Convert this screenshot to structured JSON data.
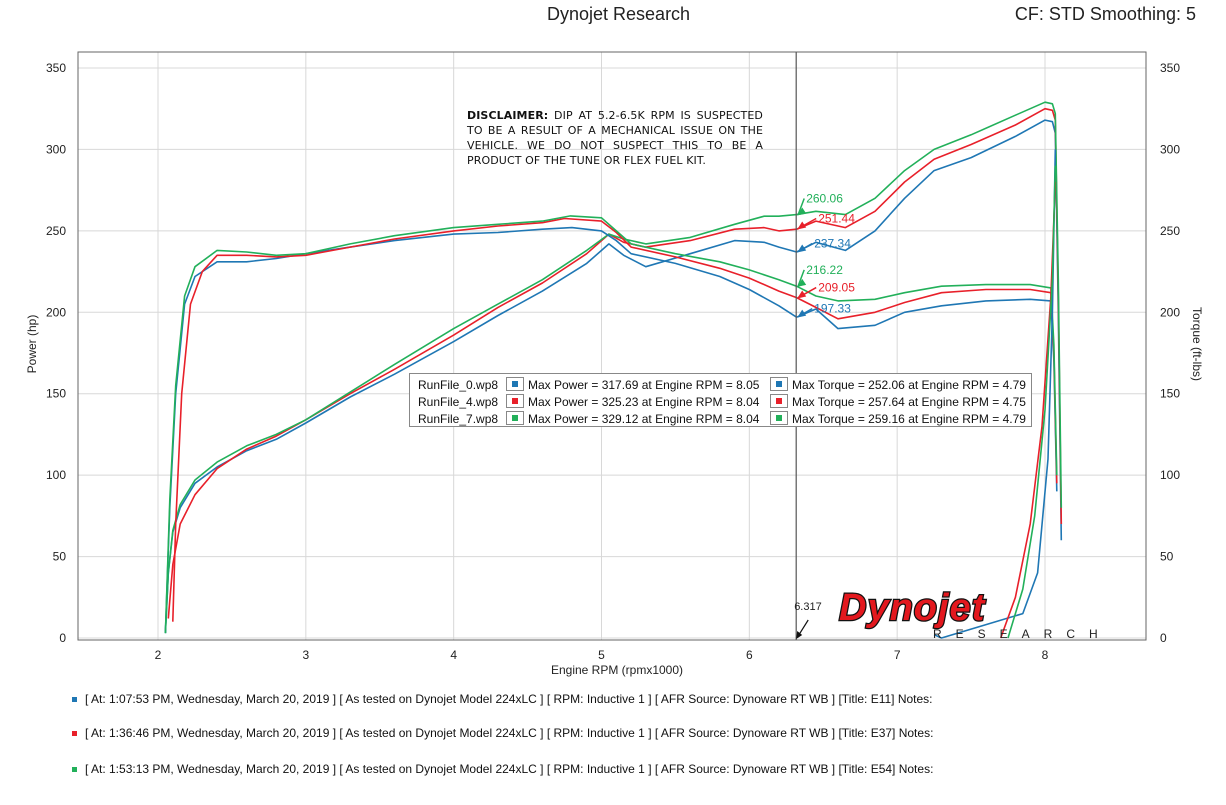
{
  "header": {
    "title": "Dynojet Research",
    "cf": "CF: STD Smoothing: 5"
  },
  "disclaimer": {
    "lead": "DISCLAIMER:",
    "text": " DIP AT 5.2-6.5K RPM IS SUSPECTED TO BE A RESULT OF A MECHANICAL ISSUE ON THE VEHICLE. WE DO NOT SUSPECT THIS TO BE A PRODUCT OF THE TUNE OR FLEX FUEL KIT."
  },
  "legend": [
    {
      "file": "RunFile_0.wp8",
      "power": "Max Power = 317.69 at Engine RPM = 8.05",
      "torque": "Max Torque = 252.06 at Engine RPM = 4.79",
      "color": "#1f77b4"
    },
    {
      "file": "RunFile_4.wp8",
      "power": "Max Power = 325.23 at Engine RPM = 8.04",
      "torque": "Max Torque = 257.64 at Engine RPM = 4.75",
      "color": "#e8202a"
    },
    {
      "file": "RunFile_7.wp8",
      "power": "Max Power = 329.12 at Engine RPM = 8.04",
      "torque": "Max Torque = 259.16 at Engine RPM = 4.79",
      "color": "#22b05a"
    }
  ],
  "runs_info": [
    {
      "text": "[ At: 1:07:53 PM, Wednesday, March 20, 2019 ] [ As tested on Dynojet Model 224xLC ] [ RPM: Inductive 1 ] [ AFR Source: Dynoware RT WB ] [Title: E11]  Notes:",
      "color": "#1f77b4"
    },
    {
      "text": "[ At: 1:36:46 PM, Wednesday, March 20, 2019 ] [ As tested on Dynojet Model 224xLC ] [ RPM: Inductive 1 ] [ AFR Source: Dynoware RT WB ] [Title: E37]  Notes:",
      "color": "#e8202a"
    },
    {
      "text": "[ At: 1:53:13 PM, Wednesday, March 20, 2019 ] [ As tested on Dynojet Model 224xLC ] [ RPM: Inductive 1 ] [ AFR Source: Dynoware RT WB ] [Title: E54]  Notes:",
      "color": "#22b05a"
    }
  ],
  "logo": {
    "brand": "Dynojet",
    "sub": "RESEARCH"
  },
  "chart_data": {
    "type": "line",
    "xlabel": "Engine RPM (rpmx1000)",
    "ylabel_left": "Power (hp)",
    "ylabel_right": "Torque (ft-lbs)",
    "xlim": [
      1.45,
      8.7
    ],
    "ylim": [
      0,
      350
    ],
    "xticks": [
      2,
      3,
      4,
      5,
      6,
      7,
      8
    ],
    "yticks": [
      0,
      50,
      100,
      150,
      200,
      250,
      300,
      350
    ],
    "grid": true,
    "cursor": {
      "x": 6.317,
      "label": "6.317"
    },
    "cursor_values": [
      {
        "power": "237.34",
        "torque": "197.33",
        "color": "#1f77b4"
      },
      {
        "power": "251.44",
        "torque": "209.05",
        "color": "#e8202a"
      },
      {
        "power": "260.06",
        "torque": "216.22",
        "color": "#22b05a"
      }
    ],
    "series": [
      {
        "name": "RunFile_0.wp8",
        "measure": "power",
        "color": "#1f77b4",
        "points": [
          [
            2.05,
            3
          ],
          [
            2.07,
            40
          ],
          [
            2.1,
            65
          ],
          [
            2.15,
            80
          ],
          [
            2.25,
            95
          ],
          [
            2.4,
            105
          ],
          [
            2.6,
            115
          ],
          [
            2.8,
            122
          ],
          [
            3.0,
            132
          ],
          [
            3.3,
            148
          ],
          [
            3.6,
            162
          ],
          [
            4.0,
            182
          ],
          [
            4.3,
            198
          ],
          [
            4.6,
            213
          ],
          [
            4.9,
            230
          ],
          [
            5.05,
            242
          ],
          [
            5.15,
            235
          ],
          [
            5.3,
            228
          ],
          [
            5.6,
            236
          ],
          [
            5.9,
            244
          ],
          [
            6.1,
            243
          ],
          [
            6.2,
            240
          ],
          [
            6.32,
            237
          ],
          [
            6.45,
            243
          ],
          [
            6.65,
            238
          ],
          [
            6.85,
            250
          ],
          [
            7.05,
            270
          ],
          [
            7.25,
            287
          ],
          [
            7.5,
            295
          ],
          [
            7.8,
            308
          ],
          [
            8.0,
            318
          ],
          [
            8.05,
            317
          ],
          [
            8.07,
            310
          ],
          [
            8.09,
            200
          ],
          [
            8.11,
            60
          ]
        ]
      },
      {
        "name": "RunFile_4.wp8",
        "measure": "power",
        "color": "#e8202a",
        "points": [
          [
            2.07,
            12
          ],
          [
            2.1,
            45
          ],
          [
            2.15,
            70
          ],
          [
            2.25,
            88
          ],
          [
            2.4,
            104
          ],
          [
            2.6,
            116
          ],
          [
            2.8,
            124
          ],
          [
            3.0,
            134
          ],
          [
            3.3,
            150
          ],
          [
            3.6,
            165
          ],
          [
            4.0,
            186
          ],
          [
            4.3,
            203
          ],
          [
            4.6,
            218
          ],
          [
            4.9,
            236
          ],
          [
            5.05,
            248
          ],
          [
            5.15,
            243
          ],
          [
            5.3,
            240
          ],
          [
            5.6,
            244
          ],
          [
            5.9,
            251
          ],
          [
            6.1,
            252
          ],
          [
            6.2,
            250
          ],
          [
            6.32,
            251
          ],
          [
            6.45,
            256
          ],
          [
            6.65,
            252
          ],
          [
            6.85,
            262
          ],
          [
            7.05,
            280
          ],
          [
            7.25,
            294
          ],
          [
            7.5,
            303
          ],
          [
            7.8,
            315
          ],
          [
            8.0,
            325
          ],
          [
            8.05,
            324
          ],
          [
            8.07,
            318
          ],
          [
            8.09,
            210
          ],
          [
            8.11,
            70
          ]
        ]
      },
      {
        "name": "RunFile_7.wp8",
        "measure": "power",
        "color": "#22b05a",
        "points": [
          [
            2.05,
            3
          ],
          [
            2.07,
            40
          ],
          [
            2.1,
            66
          ],
          [
            2.15,
            82
          ],
          [
            2.25,
            97
          ],
          [
            2.4,
            108
          ],
          [
            2.6,
            118
          ],
          [
            2.8,
            125
          ],
          [
            3.0,
            134
          ],
          [
            3.3,
            151
          ],
          [
            3.6,
            168
          ],
          [
            4.0,
            190
          ],
          [
            4.3,
            205
          ],
          [
            4.6,
            220
          ],
          [
            4.9,
            238
          ],
          [
            5.05,
            248
          ],
          [
            5.15,
            245
          ],
          [
            5.3,
            242
          ],
          [
            5.6,
            246
          ],
          [
            5.9,
            254
          ],
          [
            6.1,
            259
          ],
          [
            6.2,
            259
          ],
          [
            6.32,
            260
          ],
          [
            6.45,
            262
          ],
          [
            6.65,
            260
          ],
          [
            6.85,
            270
          ],
          [
            7.05,
            287
          ],
          [
            7.25,
            300
          ],
          [
            7.5,
            309
          ],
          [
            7.8,
            321
          ],
          [
            8.0,
            329
          ],
          [
            8.05,
            328
          ],
          [
            8.07,
            322
          ],
          [
            8.09,
            220
          ],
          [
            8.11,
            80
          ]
        ]
      },
      {
        "name": "RunFile_0.wp8",
        "measure": "torque",
        "color": "#1f77b4",
        "points": [
          [
            2.05,
            3
          ],
          [
            2.08,
            80
          ],
          [
            2.12,
            150
          ],
          [
            2.18,
            205
          ],
          [
            2.25,
            222
          ],
          [
            2.4,
            231
          ],
          [
            2.6,
            231
          ],
          [
            2.8,
            233
          ],
          [
            3.0,
            236
          ],
          [
            3.3,
            240
          ],
          [
            3.6,
            244
          ],
          [
            4.0,
            248
          ],
          [
            4.3,
            249
          ],
          [
            4.6,
            251
          ],
          [
            4.8,
            252
          ],
          [
            5.0,
            250
          ],
          [
            5.1,
            244
          ],
          [
            5.2,
            236
          ],
          [
            5.5,
            230
          ],
          [
            5.8,
            222
          ],
          [
            6.0,
            214
          ],
          [
            6.2,
            204
          ],
          [
            6.32,
            197
          ],
          [
            6.45,
            202
          ],
          [
            6.6,
            190
          ],
          [
            6.85,
            192
          ],
          [
            7.05,
            200
          ],
          [
            7.3,
            204
          ],
          [
            7.6,
            207
          ],
          [
            7.9,
            208
          ],
          [
            8.04,
            207
          ],
          [
            8.06,
            170
          ],
          [
            8.08,
            90
          ]
        ]
      },
      {
        "name": "RunFile_4.wp8",
        "measure": "torque",
        "color": "#e8202a",
        "points": [
          [
            2.1,
            10
          ],
          [
            2.12,
            70
          ],
          [
            2.16,
            150
          ],
          [
            2.22,
            205
          ],
          [
            2.3,
            225
          ],
          [
            2.4,
            235
          ],
          [
            2.6,
            235
          ],
          [
            2.8,
            234
          ],
          [
            3.0,
            235
          ],
          [
            3.3,
            240
          ],
          [
            3.6,
            245
          ],
          [
            4.0,
            250
          ],
          [
            4.3,
            253
          ],
          [
            4.6,
            255
          ],
          [
            4.75,
            257.6
          ],
          [
            5.0,
            256
          ],
          [
            5.1,
            249
          ],
          [
            5.2,
            240
          ],
          [
            5.5,
            234
          ],
          [
            5.8,
            227
          ],
          [
            6.0,
            221
          ],
          [
            6.2,
            213
          ],
          [
            6.32,
            209
          ],
          [
            6.45,
            203
          ],
          [
            6.6,
            196
          ],
          [
            6.85,
            200
          ],
          [
            7.05,
            206
          ],
          [
            7.3,
            212
          ],
          [
            7.6,
            214
          ],
          [
            7.9,
            214
          ],
          [
            8.04,
            212
          ],
          [
            8.06,
            175
          ],
          [
            8.08,
            95
          ]
        ]
      },
      {
        "name": "RunFile_7.wp8",
        "measure": "torque",
        "color": "#22b05a",
        "points": [
          [
            2.05,
            3
          ],
          [
            2.08,
            85
          ],
          [
            2.12,
            155
          ],
          [
            2.18,
            210
          ],
          [
            2.25,
            228
          ],
          [
            2.4,
            238
          ],
          [
            2.6,
            237
          ],
          [
            2.8,
            235
          ],
          [
            3.0,
            236
          ],
          [
            3.3,
            242
          ],
          [
            3.6,
            247
          ],
          [
            4.0,
            252
          ],
          [
            4.3,
            254
          ],
          [
            4.6,
            256
          ],
          [
            4.79,
            259.2
          ],
          [
            5.0,
            258
          ],
          [
            5.1,
            250
          ],
          [
            5.2,
            242
          ],
          [
            5.5,
            236
          ],
          [
            5.8,
            231
          ],
          [
            6.0,
            226
          ],
          [
            6.2,
            220
          ],
          [
            6.32,
            216
          ],
          [
            6.45,
            210
          ],
          [
            6.6,
            207
          ],
          [
            6.85,
            208
          ],
          [
            7.05,
            212
          ],
          [
            7.3,
            216
          ],
          [
            7.6,
            217
          ],
          [
            7.9,
            217
          ],
          [
            8.04,
            215
          ],
          [
            8.06,
            180
          ],
          [
            8.08,
            100
          ]
        ]
      },
      {
        "name": "RunFile_0.wp8",
        "measure": "decel",
        "color": "#1f77b4",
        "points": [
          [
            7.25,
            2
          ],
          [
            7.3,
            0
          ],
          [
            7.85,
            15
          ],
          [
            7.95,
            40
          ],
          [
            8.02,
            110
          ],
          [
            8.05,
            200
          ],
          [
            8.07,
            300
          ]
        ]
      },
      {
        "name": "RunFile_4.wp8",
        "measure": "decel",
        "color": "#e8202a",
        "points": [
          [
            7.7,
            0
          ],
          [
            7.8,
            25
          ],
          [
            7.9,
            70
          ],
          [
            7.98,
            130
          ],
          [
            8.04,
            210
          ],
          [
            8.07,
            280
          ]
        ]
      },
      {
        "name": "RunFile_7.wp8",
        "measure": "decel",
        "color": "#22b05a",
        "points": [
          [
            7.75,
            0
          ],
          [
            7.85,
            30
          ],
          [
            7.93,
            75
          ],
          [
            8.0,
            140
          ],
          [
            8.05,
            220
          ],
          [
            8.07,
            290
          ]
        ]
      }
    ]
  }
}
